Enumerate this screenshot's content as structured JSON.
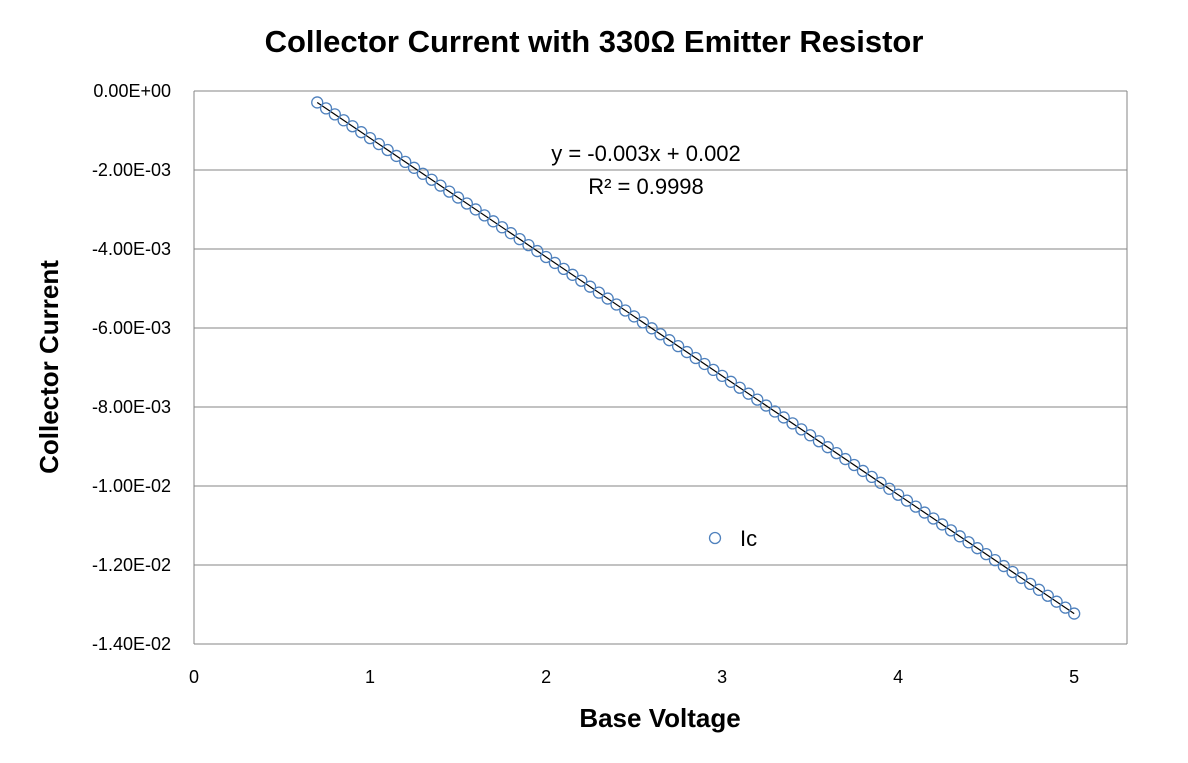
{
  "chart_data": {
    "type": "scatter",
    "title": "Collector Current with 330Ω Emitter Resistor",
    "xlabel": "Base Voltage",
    "ylabel": "Collector Current",
    "xlim": [
      0,
      5.3
    ],
    "ylim": [
      -0.014,
      0
    ],
    "x_ticks": [
      0,
      1,
      2,
      3,
      4,
      5
    ],
    "x_tick_labels": [
      "0",
      "1",
      "2",
      "3",
      "4",
      "5"
    ],
    "y_ticks": [
      0,
      -0.002,
      -0.004,
      -0.006,
      -0.008,
      -0.01,
      -0.012,
      -0.014
    ],
    "y_tick_labels": [
      "0.00E+00",
      "-2.00E-03",
      "-4.00E-03",
      "-6.00E-03",
      "-8.00E-03",
      "-1.00E-02",
      "-1.20E-02",
      "-1.40E-02"
    ],
    "grid": "horizontal",
    "legend_position": "center",
    "series": [
      {
        "name": "Ic",
        "marker": "open-circle",
        "color": "#4F81BD",
        "x_start": 0.7,
        "x_end": 5.0,
        "x_step": 0.05,
        "y_at_x_start": -0.00029,
        "y_at_x_end": -0.01323
      }
    ],
    "trendline": {
      "type": "linear",
      "color": "#000000",
      "equation": "y = -0.003x + 0.002",
      "r_squared": "R² = 0.9998"
    }
  }
}
